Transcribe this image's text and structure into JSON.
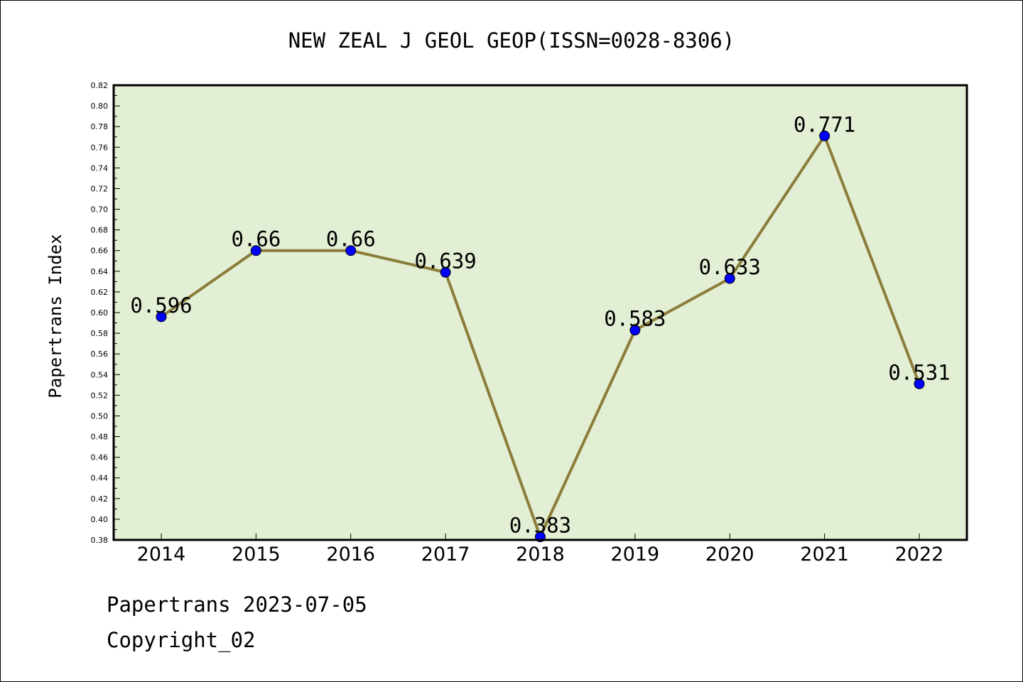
{
  "chart_data": {
    "type": "line",
    "title": "NEW ZEAL J GEOL GEOP(ISSN=0028-8306)",
    "xlabel": "",
    "ylabel": "Papertrans Index",
    "categories": [
      "2014",
      "2015",
      "2016",
      "2017",
      "2018",
      "2019",
      "2020",
      "2021",
      "2022"
    ],
    "values": [
      0.596,
      0.66,
      0.66,
      0.639,
      0.383,
      0.583,
      0.633,
      0.771,
      0.531
    ],
    "data_labels": [
      "0.596",
      "0.66",
      "0.66",
      "0.639",
      "0.383",
      "0.583",
      "0.633",
      "0.771",
      "0.531"
    ],
    "ylim": [
      0.38,
      0.82
    ],
    "yticks": [
      "0.38",
      "0.40",
      "0.42",
      "0.44",
      "0.46",
      "0.48",
      "0.50",
      "0.52",
      "0.54",
      "0.56",
      "0.58",
      "0.60",
      "0.62",
      "0.64",
      "0.66",
      "0.68",
      "0.70",
      "0.72",
      "0.74",
      "0.76",
      "0.78",
      "0.80",
      "0.82"
    ],
    "grid": false,
    "legend": "none",
    "colors": {
      "plot_background": "#e2efd4",
      "line": "#8b7d3a",
      "marker": "#0000ff",
      "axis": "#000000"
    }
  },
  "footer": {
    "line1": "Papertrans 2023-07-05",
    "line2": "Copyright_02"
  }
}
